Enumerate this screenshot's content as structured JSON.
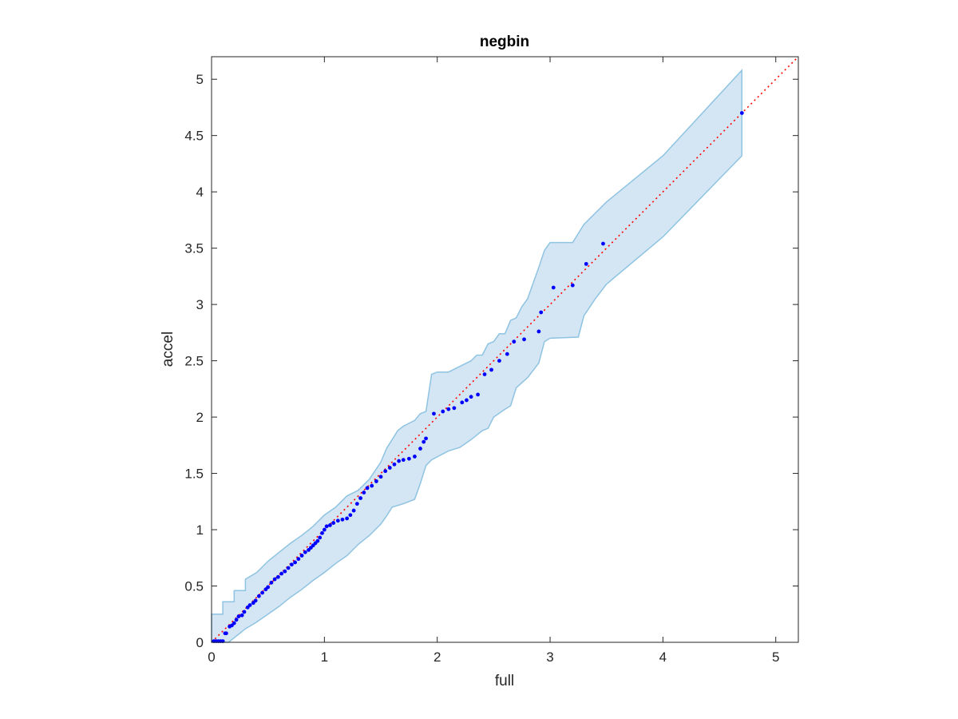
{
  "chart_data": {
    "type": "scatter",
    "title": "negbin",
    "xlabel": "full",
    "ylabel": "accel",
    "xlim": [
      0,
      5.2
    ],
    "ylim": [
      0,
      5.2
    ],
    "xticks": [
      0,
      1,
      2,
      3,
      4,
      5
    ],
    "yticks": [
      0,
      0.5,
      1,
      1.5,
      2,
      2.5,
      3,
      3.5,
      4,
      4.5,
      5
    ],
    "xtick_labels": [
      "0",
      "1",
      "2",
      "3",
      "4",
      "5"
    ],
    "ytick_labels": [
      "0",
      "0.5",
      "1",
      "1.5",
      "2",
      "2.5",
      "3",
      "3.5",
      "4",
      "4.5",
      "5"
    ],
    "grid": false,
    "colors": {
      "points": "#0000ff",
      "reference_line": "#ff0000",
      "band_fill": "#d4e6f4",
      "band_edge": "#8ec3e1"
    },
    "reference_line": {
      "from": [
        0,
        0
      ],
      "to": [
        5.2,
        5.2
      ],
      "style": "dotted"
    },
    "confidence_band": {
      "upper": [
        [
          0,
          0.25
        ],
        [
          0.1,
          0.25
        ],
        [
          0.1,
          0.36
        ],
        [
          0.2,
          0.36
        ],
        [
          0.2,
          0.46
        ],
        [
          0.3,
          0.46
        ],
        [
          0.3,
          0.56
        ],
        [
          0.4,
          0.62
        ],
        [
          0.5,
          0.72
        ],
        [
          0.6,
          0.8
        ],
        [
          0.7,
          0.88
        ],
        [
          0.8,
          0.95
        ],
        [
          0.9,
          1.03
        ],
        [
          1.0,
          1.13
        ],
        [
          1.1,
          1.2
        ],
        [
          1.2,
          1.3
        ],
        [
          1.3,
          1.35
        ],
        [
          1.4,
          1.45
        ],
        [
          1.5,
          1.6
        ],
        [
          1.55,
          1.72
        ],
        [
          1.6,
          1.8
        ],
        [
          1.65,
          1.88
        ],
        [
          1.7,
          1.92
        ],
        [
          1.8,
          1.97
        ],
        [
          1.85,
          2.03
        ],
        [
          1.9,
          2.05
        ],
        [
          1.95,
          2.38
        ],
        [
          2.0,
          2.4
        ],
        [
          2.1,
          2.4
        ],
        [
          2.3,
          2.5
        ],
        [
          2.35,
          2.55
        ],
        [
          2.4,
          2.55
        ],
        [
          2.45,
          2.65
        ],
        [
          2.5,
          2.67
        ],
        [
          2.55,
          2.74
        ],
        [
          2.6,
          2.74
        ],
        [
          2.65,
          2.86
        ],
        [
          2.7,
          2.88
        ],
        [
          2.75,
          2.98
        ],
        [
          2.8,
          3.05
        ],
        [
          2.9,
          3.33
        ],
        [
          2.95,
          3.48
        ],
        [
          3.0,
          3.55
        ],
        [
          3.2,
          3.55
        ],
        [
          3.3,
          3.71
        ],
        [
          3.5,
          3.91
        ],
        [
          4.0,
          4.32
        ],
        [
          4.7,
          5.08
        ]
      ],
      "lower": [
        [
          0.15,
          0
        ],
        [
          0.2,
          0.04
        ],
        [
          0.3,
          0.12
        ],
        [
          0.4,
          0.18
        ],
        [
          0.5,
          0.25
        ],
        [
          0.6,
          0.32
        ],
        [
          0.7,
          0.4
        ],
        [
          0.8,
          0.47
        ],
        [
          0.9,
          0.55
        ],
        [
          1.0,
          0.62
        ],
        [
          1.1,
          0.7
        ],
        [
          1.2,
          0.77
        ],
        [
          1.3,
          0.87
        ],
        [
          1.4,
          0.95
        ],
        [
          1.5,
          1.05
        ],
        [
          1.55,
          1.12
        ],
        [
          1.6,
          1.2
        ],
        [
          1.7,
          1.23
        ],
        [
          1.8,
          1.27
        ],
        [
          1.85,
          1.41
        ],
        [
          1.9,
          1.57
        ],
        [
          1.95,
          1.62
        ],
        [
          2.1,
          1.7
        ],
        [
          2.2,
          1.73
        ],
        [
          2.3,
          1.8
        ],
        [
          2.4,
          1.88
        ],
        [
          2.45,
          1.9
        ],
        [
          2.5,
          2.0
        ],
        [
          2.6,
          2.07
        ],
        [
          2.65,
          2.1
        ],
        [
          2.7,
          2.26
        ],
        [
          2.8,
          2.35
        ],
        [
          2.9,
          2.48
        ],
        [
          2.95,
          2.67
        ],
        [
          3.0,
          2.7
        ],
        [
          3.25,
          2.71
        ],
        [
          3.3,
          2.9
        ],
        [
          3.4,
          3.05
        ],
        [
          3.5,
          3.18
        ],
        [
          4.0,
          3.6
        ],
        [
          4.7,
          4.32
        ]
      ]
    },
    "points": [
      [
        0.02,
        0.01
      ],
      [
        0.04,
        0.01
      ],
      [
        0.06,
        0.01
      ],
      [
        0.08,
        0.01
      ],
      [
        0.1,
        0.01
      ],
      [
        0.12,
        0.08
      ],
      [
        0.13,
        0.08
      ],
      [
        0.16,
        0.14
      ],
      [
        0.18,
        0.15
      ],
      [
        0.2,
        0.17
      ],
      [
        0.22,
        0.2
      ],
      [
        0.24,
        0.23
      ],
      [
        0.27,
        0.24
      ],
      [
        0.29,
        0.27
      ],
      [
        0.32,
        0.31
      ],
      [
        0.34,
        0.33
      ],
      [
        0.37,
        0.35
      ],
      [
        0.39,
        0.37
      ],
      [
        0.42,
        0.41
      ],
      [
        0.45,
        0.44
      ],
      [
        0.48,
        0.47
      ],
      [
        0.5,
        0.49
      ],
      [
        0.53,
        0.53
      ],
      [
        0.56,
        0.56
      ],
      [
        0.59,
        0.58
      ],
      [
        0.62,
        0.61
      ],
      [
        0.65,
        0.63
      ],
      [
        0.68,
        0.66
      ],
      [
        0.71,
        0.69
      ],
      [
        0.74,
        0.71
      ],
      [
        0.77,
        0.74
      ],
      [
        0.8,
        0.77
      ],
      [
        0.83,
        0.8
      ],
      [
        0.86,
        0.82
      ],
      [
        0.88,
        0.84
      ],
      [
        0.9,
        0.86
      ],
      [
        0.92,
        0.88
      ],
      [
        0.94,
        0.9
      ],
      [
        0.96,
        0.93
      ],
      [
        0.98,
        0.97
      ],
      [
        1.0,
        1.0
      ],
      [
        1.02,
        1.03
      ],
      [
        1.05,
        1.04
      ],
      [
        1.08,
        1.06
      ],
      [
        1.12,
        1.08
      ],
      [
        1.16,
        1.09
      ],
      [
        1.2,
        1.1
      ],
      [
        1.23,
        1.13
      ],
      [
        1.26,
        1.17
      ],
      [
        1.29,
        1.23
      ],
      [
        1.32,
        1.28
      ],
      [
        1.35,
        1.33
      ],
      [
        1.38,
        1.37
      ],
      [
        1.42,
        1.39
      ],
      [
        1.46,
        1.43
      ],
      [
        1.5,
        1.47
      ],
      [
        1.54,
        1.52
      ],
      [
        1.58,
        1.55
      ],
      [
        1.62,
        1.58
      ],
      [
        1.66,
        1.61
      ],
      [
        1.7,
        1.62
      ],
      [
        1.75,
        1.63
      ],
      [
        1.8,
        1.65
      ],
      [
        1.85,
        1.72
      ],
      [
        1.88,
        1.78
      ],
      [
        1.9,
        1.81
      ],
      [
        1.97,
        2.03
      ],
      [
        2.05,
        2.05
      ],
      [
        2.1,
        2.07
      ],
      [
        2.15,
        2.08
      ],
      [
        2.22,
        2.13
      ],
      [
        2.26,
        2.15
      ],
      [
        2.3,
        2.18
      ],
      [
        2.36,
        2.2
      ],
      [
        2.42,
        2.38
      ],
      [
        2.48,
        2.42
      ],
      [
        2.55,
        2.5
      ],
      [
        2.62,
        2.56
      ],
      [
        2.68,
        2.67
      ],
      [
        2.77,
        2.69
      ],
      [
        2.9,
        2.76
      ],
      [
        2.92,
        2.93
      ],
      [
        3.03,
        3.15
      ],
      [
        3.2,
        3.17
      ],
      [
        3.32,
        3.36
      ],
      [
        3.47,
        3.54
      ],
      [
        4.7,
        4.7
      ]
    ]
  }
}
